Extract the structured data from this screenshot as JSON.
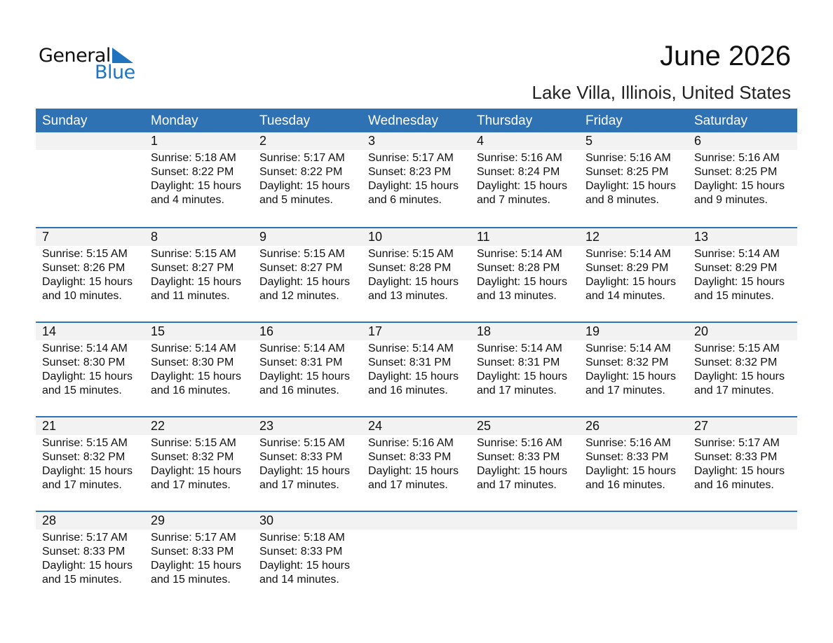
{
  "logo": {
    "text1": "General",
    "text2": "Blue",
    "color": "#1f73bf"
  },
  "header": {
    "title": "June 2026",
    "subtitle": "Lake Villa, Illinois, United States"
  },
  "colors": {
    "header_bg": "#2e72b3",
    "band_bg": "#f2f2f2"
  },
  "weekdays": [
    "Sunday",
    "Monday",
    "Tuesday",
    "Wednesday",
    "Thursday",
    "Friday",
    "Saturday"
  ],
  "weeks": [
    [
      null,
      {
        "day": "1",
        "sunrise": "Sunrise: 5:18 AM",
        "sunset": "Sunset: 8:22 PM",
        "daylight1": "Daylight: 15 hours",
        "daylight2": "and 4 minutes."
      },
      {
        "day": "2",
        "sunrise": "Sunrise: 5:17 AM",
        "sunset": "Sunset: 8:22 PM",
        "daylight1": "Daylight: 15 hours",
        "daylight2": "and 5 minutes."
      },
      {
        "day": "3",
        "sunrise": "Sunrise: 5:17 AM",
        "sunset": "Sunset: 8:23 PM",
        "daylight1": "Daylight: 15 hours",
        "daylight2": "and 6 minutes."
      },
      {
        "day": "4",
        "sunrise": "Sunrise: 5:16 AM",
        "sunset": "Sunset: 8:24 PM",
        "daylight1": "Daylight: 15 hours",
        "daylight2": "and 7 minutes."
      },
      {
        "day": "5",
        "sunrise": "Sunrise: 5:16 AM",
        "sunset": "Sunset: 8:25 PM",
        "daylight1": "Daylight: 15 hours",
        "daylight2": "and 8 minutes."
      },
      {
        "day": "6",
        "sunrise": "Sunrise: 5:16 AM",
        "sunset": "Sunset: 8:25 PM",
        "daylight1": "Daylight: 15 hours",
        "daylight2": "and 9 minutes."
      }
    ],
    [
      {
        "day": "7",
        "sunrise": "Sunrise: 5:15 AM",
        "sunset": "Sunset: 8:26 PM",
        "daylight1": "Daylight: 15 hours",
        "daylight2": "and 10 minutes."
      },
      {
        "day": "8",
        "sunrise": "Sunrise: 5:15 AM",
        "sunset": "Sunset: 8:27 PM",
        "daylight1": "Daylight: 15 hours",
        "daylight2": "and 11 minutes."
      },
      {
        "day": "9",
        "sunrise": "Sunrise: 5:15 AM",
        "sunset": "Sunset: 8:27 PM",
        "daylight1": "Daylight: 15 hours",
        "daylight2": "and 12 minutes."
      },
      {
        "day": "10",
        "sunrise": "Sunrise: 5:15 AM",
        "sunset": "Sunset: 8:28 PM",
        "daylight1": "Daylight: 15 hours",
        "daylight2": "and 13 minutes."
      },
      {
        "day": "11",
        "sunrise": "Sunrise: 5:14 AM",
        "sunset": "Sunset: 8:28 PM",
        "daylight1": "Daylight: 15 hours",
        "daylight2": "and 13 minutes."
      },
      {
        "day": "12",
        "sunrise": "Sunrise: 5:14 AM",
        "sunset": "Sunset: 8:29 PM",
        "daylight1": "Daylight: 15 hours",
        "daylight2": "and 14 minutes."
      },
      {
        "day": "13",
        "sunrise": "Sunrise: 5:14 AM",
        "sunset": "Sunset: 8:29 PM",
        "daylight1": "Daylight: 15 hours",
        "daylight2": "and 15 minutes."
      }
    ],
    [
      {
        "day": "14",
        "sunrise": "Sunrise: 5:14 AM",
        "sunset": "Sunset: 8:30 PM",
        "daylight1": "Daylight: 15 hours",
        "daylight2": "and 15 minutes."
      },
      {
        "day": "15",
        "sunrise": "Sunrise: 5:14 AM",
        "sunset": "Sunset: 8:30 PM",
        "daylight1": "Daylight: 15 hours",
        "daylight2": "and 16 minutes."
      },
      {
        "day": "16",
        "sunrise": "Sunrise: 5:14 AM",
        "sunset": "Sunset: 8:31 PM",
        "daylight1": "Daylight: 15 hours",
        "daylight2": "and 16 minutes."
      },
      {
        "day": "17",
        "sunrise": "Sunrise: 5:14 AM",
        "sunset": "Sunset: 8:31 PM",
        "daylight1": "Daylight: 15 hours",
        "daylight2": "and 16 minutes."
      },
      {
        "day": "18",
        "sunrise": "Sunrise: 5:14 AM",
        "sunset": "Sunset: 8:31 PM",
        "daylight1": "Daylight: 15 hours",
        "daylight2": "and 17 minutes."
      },
      {
        "day": "19",
        "sunrise": "Sunrise: 5:14 AM",
        "sunset": "Sunset: 8:32 PM",
        "daylight1": "Daylight: 15 hours",
        "daylight2": "and 17 minutes."
      },
      {
        "day": "20",
        "sunrise": "Sunrise: 5:15 AM",
        "sunset": "Sunset: 8:32 PM",
        "daylight1": "Daylight: 15 hours",
        "daylight2": "and 17 minutes."
      }
    ],
    [
      {
        "day": "21",
        "sunrise": "Sunrise: 5:15 AM",
        "sunset": "Sunset: 8:32 PM",
        "daylight1": "Daylight: 15 hours",
        "daylight2": "and 17 minutes."
      },
      {
        "day": "22",
        "sunrise": "Sunrise: 5:15 AM",
        "sunset": "Sunset: 8:32 PM",
        "daylight1": "Daylight: 15 hours",
        "daylight2": "and 17 minutes."
      },
      {
        "day": "23",
        "sunrise": "Sunrise: 5:15 AM",
        "sunset": "Sunset: 8:33 PM",
        "daylight1": "Daylight: 15 hours",
        "daylight2": "and 17 minutes."
      },
      {
        "day": "24",
        "sunrise": "Sunrise: 5:16 AM",
        "sunset": "Sunset: 8:33 PM",
        "daylight1": "Daylight: 15 hours",
        "daylight2": "and 17 minutes."
      },
      {
        "day": "25",
        "sunrise": "Sunrise: 5:16 AM",
        "sunset": "Sunset: 8:33 PM",
        "daylight1": "Daylight: 15 hours",
        "daylight2": "and 17 minutes."
      },
      {
        "day": "26",
        "sunrise": "Sunrise: 5:16 AM",
        "sunset": "Sunset: 8:33 PM",
        "daylight1": "Daylight: 15 hours",
        "daylight2": "and 16 minutes."
      },
      {
        "day": "27",
        "sunrise": "Sunrise: 5:17 AM",
        "sunset": "Sunset: 8:33 PM",
        "daylight1": "Daylight: 15 hours",
        "daylight2": "and 16 minutes."
      }
    ],
    [
      {
        "day": "28",
        "sunrise": "Sunrise: 5:17 AM",
        "sunset": "Sunset: 8:33 PM",
        "daylight1": "Daylight: 15 hours",
        "daylight2": "and 15 minutes."
      },
      {
        "day": "29",
        "sunrise": "Sunrise: 5:17 AM",
        "sunset": "Sunset: 8:33 PM",
        "daylight1": "Daylight: 15 hours",
        "daylight2": "and 15 minutes."
      },
      {
        "day": "30",
        "sunrise": "Sunrise: 5:18 AM",
        "sunset": "Sunset: 8:33 PM",
        "daylight1": "Daylight: 15 hours",
        "daylight2": "and 14 minutes."
      },
      null,
      null,
      null,
      null
    ]
  ]
}
